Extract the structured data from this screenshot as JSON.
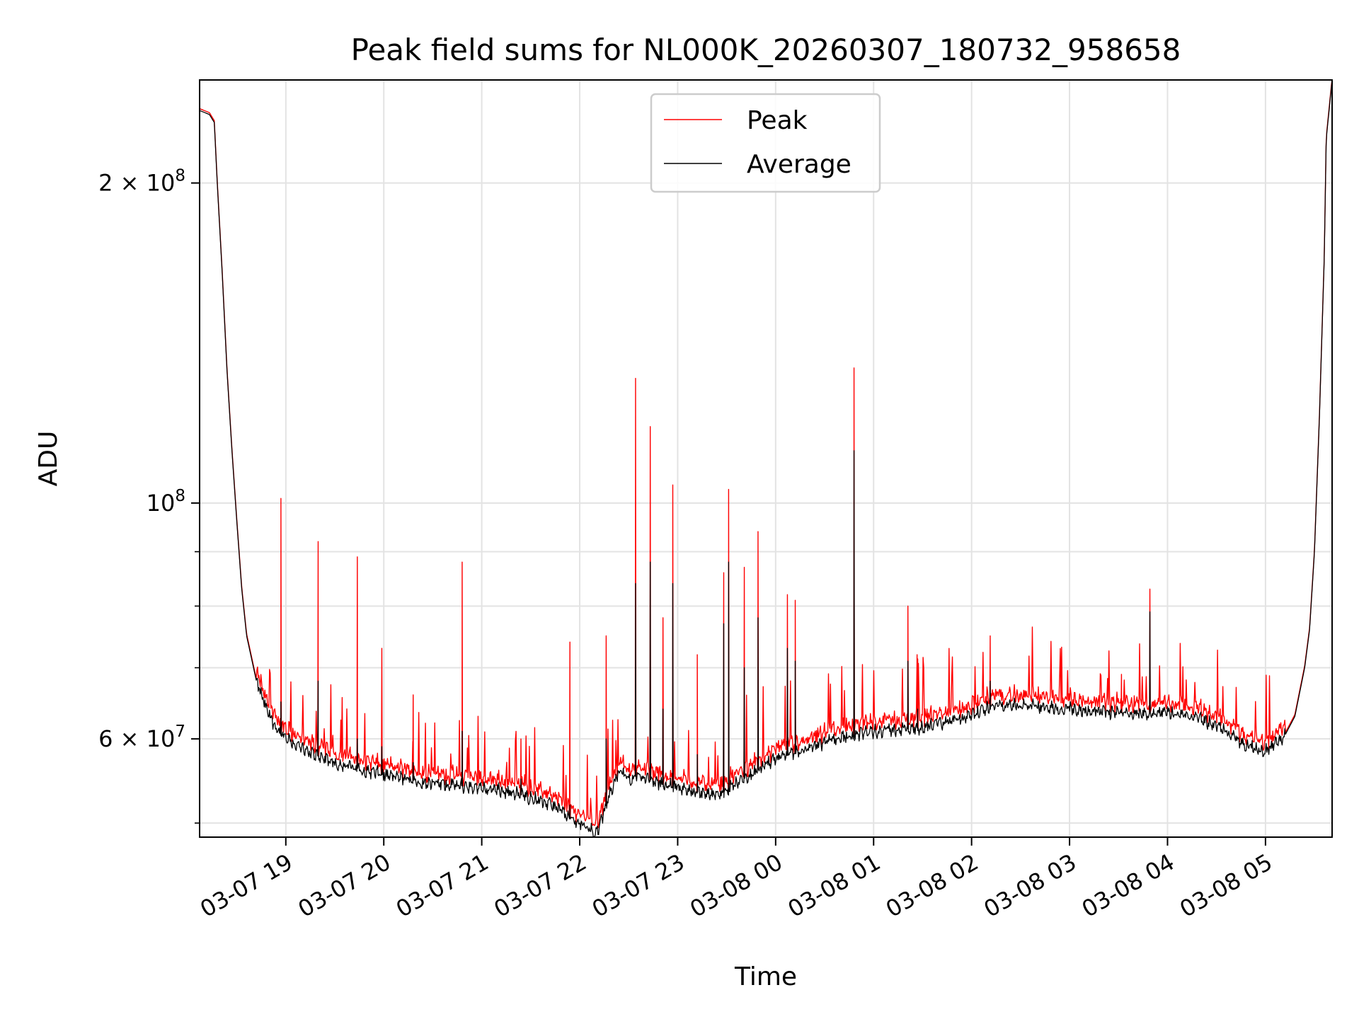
{
  "chart_data": {
    "type": "line",
    "title": "Peak field sums for NL000K_20260307_180732_958658",
    "xlabel": "Time",
    "ylabel": "ADU",
    "yscale": "log",
    "grid": true,
    "legend_position": "top-center",
    "x_unit": "hours since 03-07 18:00",
    "xlim": [
      18.12,
      29.68
    ],
    "ylim": [
      48500000,
      250000000
    ],
    "x_ticks": [
      {
        "value": 19,
        "label": "03-07 19"
      },
      {
        "value": 20,
        "label": "03-07 20"
      },
      {
        "value": 21,
        "label": "03-07 21"
      },
      {
        "value": 22,
        "label": "03-07 22"
      },
      {
        "value": 23,
        "label": "03-07 23"
      },
      {
        "value": 24,
        "label": "03-08 00"
      },
      {
        "value": 25,
        "label": "03-08 01"
      },
      {
        "value": 26,
        "label": "03-08 02"
      },
      {
        "value": 27,
        "label": "03-08 03"
      },
      {
        "value": 28,
        "label": "03-08 04"
      },
      {
        "value": 29,
        "label": "03-08 05"
      }
    ],
    "y_ticks": [
      {
        "value": 60000000,
        "label": "6 × 10",
        "exp": "7"
      },
      {
        "value": 100000000,
        "label": "10",
        "exp": "8"
      },
      {
        "value": 200000000,
        "label": "2 × 10",
        "exp": "8"
      }
    ],
    "y_minor_ticks": [
      50000000,
      70000000,
      80000000,
      90000000
    ],
    "series": [
      {
        "name": "Peak",
        "color": "#ff0000"
      },
      {
        "name": "Average",
        "color": "#000000"
      }
    ],
    "baseline": {
      "x": [
        18.12,
        18.22,
        18.27,
        18.3,
        18.35,
        18.4,
        18.45,
        18.5,
        18.55,
        18.6,
        18.7,
        18.8,
        18.9,
        19.0,
        19.2,
        19.5,
        20.0,
        20.5,
        21.0,
        21.3,
        21.6,
        21.8,
        21.9,
        22.0,
        22.1,
        22.15,
        22.2,
        22.3,
        22.4,
        22.5,
        22.6,
        22.8,
        23.0,
        23.2,
        23.4,
        23.6,
        23.8,
        24.0,
        24.3,
        24.6,
        25.0,
        25.5,
        26.0,
        26.2,
        26.5,
        27.0,
        27.5,
        28.0,
        28.3,
        28.6,
        28.8,
        29.0,
        29.1,
        29.2,
        29.3,
        29.4,
        29.45,
        29.5,
        29.55,
        29.6,
        29.62,
        29.68
      ],
      "y": [
        234000000,
        232000000,
        228000000,
        200000000,
        165000000,
        133000000,
        112000000,
        96000000,
        83000000,
        75000000,
        68000000,
        64000000,
        61500000,
        60000000,
        58500000,
        57000000,
        55500000,
        54500000,
        54000000,
        53500000,
        52500000,
        51500000,
        50500000,
        50000000,
        49500000,
        49000000,
        49500000,
        53000000,
        56000000,
        55000000,
        55500000,
        54500000,
        54000000,
        53500000,
        53000000,
        54500000,
        56000000,
        57500000,
        58500000,
        60000000,
        61000000,
        61500000,
        63000000,
        64500000,
        64500000,
        64000000,
        63500000,
        63500000,
        63000000,
        61000000,
        59000000,
        58500000,
        59500000,
        60500000,
        63000000,
        70000000,
        76000000,
        90000000,
        120000000,
        170000000,
        220000000,
        250000000
      ]
    },
    "spikes": [
      {
        "x": 18.95,
        "peak": 101000000,
        "avg": 65000000
      },
      {
        "x": 19.33,
        "peak": 92000000,
        "avg": 68000000
      },
      {
        "x": 19.73,
        "peak": 89000000,
        "avg": 60000000
      },
      {
        "x": 19.98,
        "peak": 73000000,
        "avg": 59000000
      },
      {
        "x": 20.3,
        "peak": 66000000,
        "avg": 57000000
      },
      {
        "x": 20.8,
        "peak": 88000000,
        "avg": 61000000
      },
      {
        "x": 21.4,
        "peak": 60000000,
        "avg": 55000000
      },
      {
        "x": 21.9,
        "peak": 74000000,
        "avg": 52000000
      },
      {
        "x": 22.27,
        "peak": 75000000,
        "avg": 60000000
      },
      {
        "x": 22.57,
        "peak": 131000000,
        "avg": 84000000
      },
      {
        "x": 22.72,
        "peak": 118000000,
        "avg": 88000000
      },
      {
        "x": 22.85,
        "peak": 78000000,
        "avg": 64000000
      },
      {
        "x": 22.95,
        "peak": 104000000,
        "avg": 84000000
      },
      {
        "x": 23.2,
        "peak": 72000000,
        "avg": 58000000
      },
      {
        "x": 23.47,
        "peak": 86000000,
        "avg": 77000000
      },
      {
        "x": 23.52,
        "peak": 103000000,
        "avg": 88000000
      },
      {
        "x": 23.68,
        "peak": 87000000,
        "avg": 70000000
      },
      {
        "x": 23.82,
        "peak": 94000000,
        "avg": 78000000
      },
      {
        "x": 24.12,
        "peak": 82000000,
        "avg": 73000000
      },
      {
        "x": 24.2,
        "peak": 81000000,
        "avg": 71000000
      },
      {
        "x": 24.8,
        "peak": 134000000,
        "avg": 112000000
      },
      {
        "x": 25.35,
        "peak": 80000000,
        "avg": 71000000
      },
      {
        "x": 25.45,
        "peak": 69000000,
        "avg": 64000000
      },
      {
        "x": 26.19,
        "peak": 75000000,
        "avg": 68000000
      },
      {
        "x": 27.53,
        "peak": 69000000,
        "avg": 64000000
      },
      {
        "x": 27.82,
        "peak": 83000000,
        "avg": 79000000
      }
    ]
  }
}
